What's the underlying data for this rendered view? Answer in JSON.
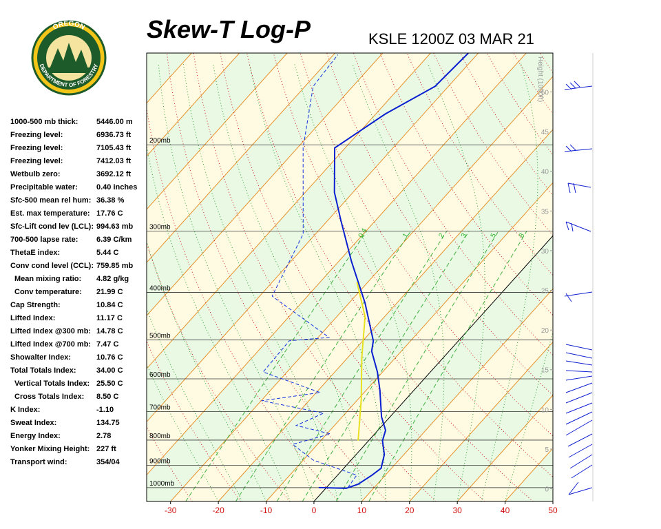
{
  "header": {
    "logo_top": "OREGON",
    "logo_bottom": "DEPARTMENT OF FORESTRY",
    "title": "Skew-T Log-P",
    "subtitle": "KSLE 1200Z 03 MAR 21"
  },
  "stats": [
    [
      "1000-500 mb thick:",
      "5446.00 m"
    ],
    [
      "Freezing level:",
      "6936.73 ft"
    ],
    [
      "Freezing level:",
      "7105.43 ft"
    ],
    [
      "Freezing level:",
      "7412.03 ft"
    ],
    [
      "Wetbulb zero:",
      "3692.12 ft"
    ],
    [
      "Precipitable water:",
      "0.40 inches"
    ],
    [
      "Sfc-500 mean rel hum:",
      "36.38 %"
    ],
    [
      "Est. max temperature:",
      "17.76 C"
    ],
    [
      "Sfc-Lift cond lev (LCL):",
      "994.63 mb"
    ],
    [
      "700-500 lapse rate:",
      "6.39 C/km"
    ],
    [
      "ThetaE index:",
      "5.44 C"
    ],
    [
      "Conv cond level (CCL):",
      "759.85 mb"
    ],
    [
      "Mean mixing ratio:",
      "4.82 g/kg"
    ],
    [
      "Conv temperature:",
      "21.99 C"
    ],
    [
      "Cap Strength:",
      "10.84 C"
    ],
    [
      "Lifted Index:",
      "11.17 C"
    ],
    [
      "Lifted Index @300 mb:",
      "14.78 C"
    ],
    [
      "Lifted Index @700 mb:",
      "7.47 C"
    ],
    [
      "Showalter Index:",
      "10.76 C"
    ],
    [
      "Total Totals Index:",
      "34.00 C"
    ],
    [
      "Vertical Totals Index:",
      "25.50 C"
    ],
    [
      "Cross Totals Index:",
      "8.50 C"
    ],
    [
      "K Index:",
      "-1.10"
    ],
    [
      "Sweat Index:",
      "134.75"
    ],
    [
      "Energy Index:",
      "2.78"
    ],
    [
      "Yonker Mixing Height:",
      "227 ft"
    ],
    [
      "Transport wind:",
      "354/04"
    ]
  ],
  "chart_data": {
    "type": "skewt",
    "xlim": [
      -35,
      50
    ],
    "xticks": [
      -30,
      -20,
      -10,
      0,
      10,
      20,
      30,
      40,
      50
    ],
    "ylim": [
      1067,
      130
    ],
    "log_y": true,
    "yticks": [
      {
        "value": 1000,
        "label": "1000mb"
      },
      {
        "value": 900,
        "label": "900mb"
      },
      {
        "value": 800,
        "label": "800mb"
      },
      {
        "value": 700,
        "label": "700mb"
      },
      {
        "value": 600,
        "label": "600mb"
      },
      {
        "value": 500,
        "label": "500mb"
      },
      {
        "value": 400,
        "label": "400mb"
      },
      {
        "value": 300,
        "label": "300mb"
      },
      {
        "value": 200,
        "label": "200mb"
      }
    ],
    "y2label": "Height (1000ft)",
    "y2lim": [
      -1.6,
      54.9
    ],
    "y2ticks": [
      0,
      5,
      10,
      15,
      20,
      25,
      30,
      35,
      40,
      45,
      50
    ],
    "mixing_ratio_labels": [
      "0.4",
      "1",
      "2",
      "3",
      "5",
      "8"
    ],
    "series": [
      {
        "color": "#0a1fd0",
        "style": "solid",
        "pressure": [
          1000,
          1003,
          984,
          943,
          913,
          856,
          802,
          764,
          717,
          632,
          581,
          527,
          502,
          420,
          346,
          285,
          250,
          203,
          173,
          152,
          130
        ],
        "values": [
          -1.6,
          4.3,
          6.0,
          7.2,
          7.8,
          5.9,
          2.9,
          1.6,
          -1.8,
          -7.2,
          -11.1,
          -16.2,
          -17.8,
          -26.7,
          -37.3,
          -47.3,
          -53.9,
          -62.2,
          -58.0,
          -52.8,
          -52.1
        ]
      },
      {
        "color": "#1030e0",
        "style": "dashed",
        "pressure": [
          1000,
          943,
          879,
          816,
          777,
          747,
          705,
          665,
          640,
          581,
          502,
          494,
          407,
          304,
          203,
          152,
          131
        ],
        "values": [
          4.5,
          4.0,
          -7.9,
          -15.2,
          -9.3,
          -18.0,
          -14.6,
          -29.9,
          -19.2,
          -35.0,
          -35.4,
          -27.7,
          -47.4,
          -52.6,
          -68.8,
          -78.3,
          -79.1
        ]
      },
      {
        "color": "#e8e020",
        "style": "solid",
        "pressure": [
          802,
          661,
          544,
          448,
          381
        ],
        "values": [
          -2.2,
          -9.3,
          -17.0,
          -24.1,
          -32.3
        ]
      }
    ]
  }
}
